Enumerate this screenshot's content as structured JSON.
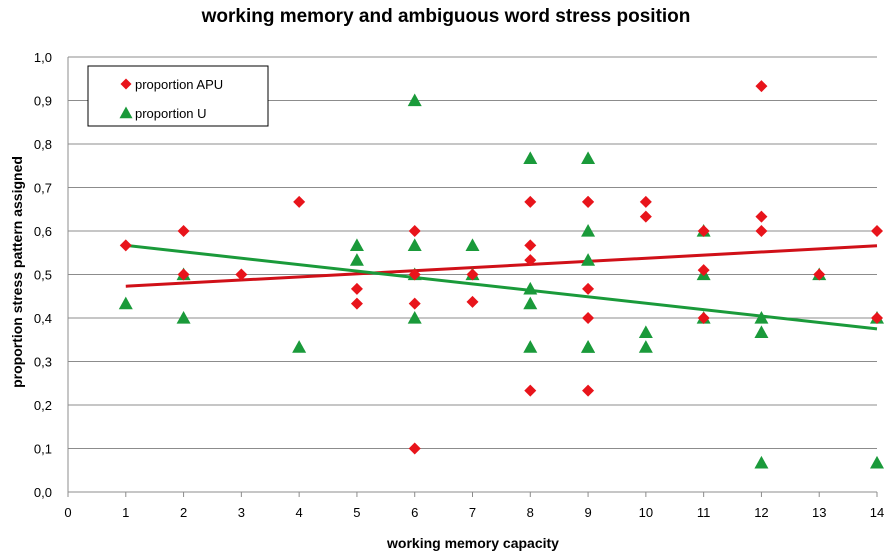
{
  "chart_data": {
    "type": "scatter",
    "title": "working memory and ambiguous  word stress position",
    "xlabel": "working memory capacity",
    "ylabel": "proportion stress pattern assigned",
    "xlim": [
      0,
      14
    ],
    "ylim": [
      0,
      1.0
    ],
    "x_ticks": [
      "0",
      "1",
      "2",
      "3",
      "4",
      "5",
      "6",
      "7",
      "8",
      "9",
      "10",
      "11",
      "12",
      "13",
      "14"
    ],
    "y_ticks": [
      "0,0",
      "0,1",
      "0,2",
      "0,3",
      "0,4",
      "0,5",
      "0,6",
      "0,7",
      "0,8",
      "0,9",
      "1,0"
    ],
    "grid": "horizontal",
    "legend_position": "top-left",
    "series": [
      {
        "name": "proportion APU",
        "marker": "diamond",
        "color": "#e8141b",
        "trendline": {
          "x": [
            1,
            14
          ],
          "y": [
            0.473,
            0.566
          ],
          "color": "#d01018"
        },
        "points": [
          [
            1,
            0.567
          ],
          [
            2,
            0.6
          ],
          [
            2,
            0.5
          ],
          [
            3,
            0.5
          ],
          [
            4,
            0.667
          ],
          [
            5,
            0.467
          ],
          [
            5,
            0.433
          ],
          [
            6,
            0.6
          ],
          [
            6,
            0.5
          ],
          [
            6,
            0.433
          ],
          [
            6,
            0.1
          ],
          [
            7,
            0.5
          ],
          [
            7,
            0.437
          ],
          [
            8,
            0.667
          ],
          [
            8,
            0.567
          ],
          [
            8,
            0.533
          ],
          [
            8,
            0.233
          ],
          [
            9,
            0.667
          ],
          [
            9,
            0.667
          ],
          [
            9,
            0.467
          ],
          [
            9,
            0.4
          ],
          [
            9,
            0.233
          ],
          [
            10,
            0.667
          ],
          [
            10,
            0.633
          ],
          [
            11,
            0.6
          ],
          [
            11,
            0.51
          ],
          [
            11,
            0.4
          ],
          [
            12,
            0.933
          ],
          [
            12,
            0.633
          ],
          [
            12,
            0.6
          ],
          [
            13,
            0.5
          ],
          [
            14,
            0.6
          ],
          [
            14,
            0.4
          ]
        ]
      },
      {
        "name": "proportion U",
        "marker": "triangle",
        "color": "#1a9a3a",
        "trendline": {
          "x": [
            1,
            14
          ],
          "y": [
            0.567,
            0.375
          ],
          "color": "#1a9a3a"
        },
        "points": [
          [
            1,
            0.433
          ],
          [
            2,
            0.5
          ],
          [
            2,
            0.4
          ],
          [
            4,
            0.333
          ],
          [
            5,
            0.567
          ],
          [
            5,
            0.533
          ],
          [
            6,
            0.9
          ],
          [
            6,
            0.567
          ],
          [
            6,
            0.5
          ],
          [
            6,
            0.4
          ],
          [
            7,
            0.567
          ],
          [
            7,
            0.5
          ],
          [
            8,
            0.767
          ],
          [
            8,
            0.467
          ],
          [
            8,
            0.433
          ],
          [
            8,
            0.333
          ],
          [
            9,
            0.767
          ],
          [
            9,
            0.6
          ],
          [
            9,
            0.533
          ],
          [
            9,
            0.333
          ],
          [
            9,
            0.333
          ],
          [
            10,
            0.367
          ],
          [
            10,
            0.333
          ],
          [
            11,
            0.6
          ],
          [
            11,
            0.5
          ],
          [
            11,
            0.4
          ],
          [
            12,
            0.4
          ],
          [
            12,
            0.367
          ],
          [
            12,
            0.067
          ],
          [
            13,
            0.5
          ],
          [
            14,
            0.4
          ],
          [
            14,
            0.067
          ]
        ]
      }
    ]
  }
}
